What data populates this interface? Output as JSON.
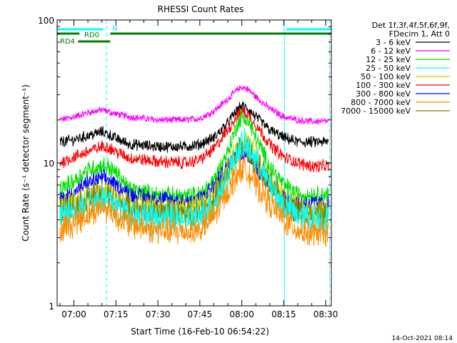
{
  "chart_data": {
    "type": "line",
    "title": "RHESSI Count Rates",
    "xlabel": "Start Time (16-Feb-10 06:54:22)",
    "ylabel": "Count Rate (s⁻¹ detector segment⁻¹)",
    "yscale": "log",
    "ylim": [
      1,
      100
    ],
    "xlim_min_after_0700": [
      -6,
      92
    ],
    "x_tick_labels": [
      "07:00",
      "07:15",
      "07:30",
      "07:45",
      "08:00",
      "08:15",
      "08:30"
    ],
    "x_tick_values_min": [
      0,
      15,
      30,
      45,
      60,
      75,
      90
    ],
    "y_tick_labels": [
      "1",
      "10",
      "100"
    ],
    "y_tick_values": [
      1,
      10,
      100
    ],
    "legend_header": [
      "Det 1f,3f,4f,5f,6f,9f,",
      "FDecim 1, Att 0"
    ],
    "x_min": [
      -5,
      0,
      5,
      10,
      12,
      15,
      20,
      30,
      40,
      45,
      50,
      55,
      58,
      60,
      62,
      65,
      70,
      75,
      80,
      85,
      91
    ],
    "series": [
      {
        "name": "3 - 6 keV",
        "color": "#000000",
        "values": [
          14,
          14.5,
          15.5,
          16.5,
          16,
          14.8,
          13.5,
          13,
          13,
          13.5,
          15,
          19,
          23,
          25,
          24,
          21,
          17,
          15,
          14,
          14,
          14
        ]
      },
      {
        "name": "6 - 12 keV",
        "color": "#ff00ff",
        "values": [
          20,
          21,
          22.5,
          23.5,
          23,
          22,
          21,
          20,
          20,
          20.5,
          23,
          28,
          32,
          34,
          33,
          29,
          24,
          21,
          20,
          19.5,
          19.5
        ]
      },
      {
        "name": "12 - 25 keV",
        "color": "#00e000",
        "values": [
          6.5,
          7.5,
          9,
          9.5,
          9.5,
          8.5,
          6.5,
          6,
          5.8,
          6,
          7.5,
          12,
          18,
          21,
          20,
          15,
          9.5,
          7,
          6,
          6,
          6
        ]
      },
      {
        "name": "25 - 50 keV",
        "color": "#00ffff",
        "values": [
          4.2,
          4.6,
          5.2,
          5.7,
          5.6,
          5,
          4.4,
          4.1,
          4,
          4.2,
          5.2,
          8,
          11.5,
          13.5,
          13,
          10.5,
          7,
          5,
          4.3,
          4,
          4
        ]
      },
      {
        "name": "50 - 100 keV",
        "color": "#d0d000",
        "values": [
          4.8,
          5.2,
          5.8,
          6.3,
          6.2,
          5.6,
          5,
          4.7,
          4.6,
          4.8,
          5.8,
          8.8,
          12.5,
          14.5,
          14,
          11,
          7.5,
          5.5,
          4.8,
          4.5,
          4.5
        ]
      },
      {
        "name": "100 - 300 keV",
        "color": "#ff0000",
        "values": [
          10,
          11,
          12,
          13,
          13,
          12,
          10.8,
          10.2,
          10,
          10.5,
          12.5,
          17,
          21,
          23,
          22,
          18.5,
          13.5,
          11,
          10,
          9.5,
          9.5
        ]
      },
      {
        "name": "300 - 800 keV",
        "color": "#0000ff",
        "values": [
          5.5,
          6.2,
          7.2,
          7.8,
          7.7,
          7,
          6,
          5.6,
          5.4,
          5.6,
          6.8,
          9.5,
          11.5,
          12,
          11.5,
          9.5,
          7,
          5.8,
          5.3,
          5.2,
          5.2
        ]
      },
      {
        "name": "800 - 7000 keV",
        "color": "#ff8c00",
        "values": [
          3.4,
          3.8,
          4.4,
          4.9,
          4.8,
          4.3,
          3.7,
          3.4,
          3.3,
          3.4,
          4.2,
          6.3,
          8.3,
          9.2,
          8.8,
          7.2,
          5.2,
          4,
          3.4,
          3.2,
          3.2
        ]
      },
      {
        "name": "7000 - 15000 keV",
        "color": "#808000",
        "values": [
          4.6,
          5,
          5.6,
          6,
          5.9,
          5.4,
          4.8,
          4.5,
          4.4,
          4.6,
          5.5,
          8.3,
          11.5,
          13,
          12.5,
          10,
          7,
          5.3,
          4.6,
          4.3,
          4.3
        ]
      }
    ],
    "annotations": [
      {
        "text": "RD0",
        "color": "#008000"
      },
      {
        "text": "RD4",
        "color": "#008000"
      },
      {
        "text": "N",
        "color": "#00e5ee"
      }
    ],
    "flag_bars": [
      {
        "color": "#00ffff",
        "row": 1,
        "x_from_min": -6,
        "x_to_min": 10.5
      },
      {
        "color": "#00ffff",
        "row": 1,
        "x_from_min": 76,
        "x_to_min": 92
      },
      {
        "color": "#008000",
        "row": 2,
        "x_from_min": -6,
        "x_to_min": 2
      },
      {
        "color": "#008000",
        "row": 2,
        "x_from_min": 13,
        "x_to_min": 92
      },
      {
        "color": "#008000",
        "row": 3,
        "x_from_min": 1.5,
        "x_to_min": 13
      }
    ],
    "vertical_markers": [
      {
        "x_min": -6,
        "style": "solid",
        "color": "#00ffff"
      },
      {
        "x_min": 11.6,
        "style": "dashed",
        "color": "#00ffff"
      },
      {
        "x_min": 75.2,
        "style": "solid",
        "color": "#00ffff"
      },
      {
        "x_min": 91.4,
        "style": "dashed",
        "color": "#00ffff"
      }
    ],
    "timestamp": "14-Oct-2021 08:14"
  }
}
